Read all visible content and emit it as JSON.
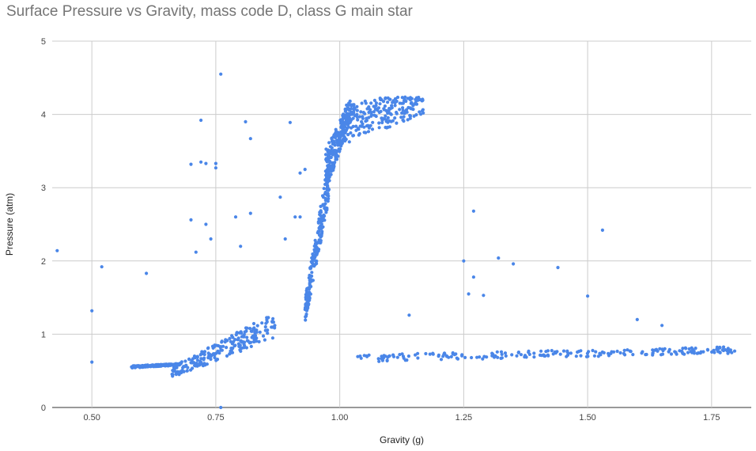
{
  "chart_data": {
    "type": "scatter",
    "title": "Surface Pressure vs Gravity, mass code D, class G main star",
    "xlabel": "Gravity (g)",
    "ylabel": "Pressure (atm)",
    "xlim": [
      0.42,
      1.83
    ],
    "ylim": [
      0,
      5
    ],
    "x_ticks": [
      "0.50",
      "0.75",
      "1.00",
      "1.25",
      "1.50",
      "1.75"
    ],
    "x_tick_values": [
      0.5,
      0.75,
      1.0,
      1.25,
      1.5,
      1.75
    ],
    "y_ticks": [
      "0",
      "1",
      "2",
      "3",
      "4",
      "5"
    ],
    "y_tick_values": [
      0,
      1,
      2,
      3,
      4,
      5
    ],
    "grid": true,
    "point_color": "#4a86e8",
    "clusters": [
      {
        "shape": "band",
        "from": [
          0.66,
          0.4,
          0.55
        ],
        "to": [
          0.87,
          0.95,
          1.3
        ]
      },
      {
        "shape": "band",
        "from": [
          0.58,
          0.54,
          0.57
        ],
        "to": [
          0.68,
          0.58,
          0.6
        ]
      },
      {
        "shape": "band",
        "from": [
          0.93,
          1.15,
          1.5
        ],
        "to": [
          0.98,
          2.9,
          3.5
        ]
      },
      {
        "shape": "band",
        "from": [
          0.97,
          2.9,
          3.5
        ],
        "to": [
          1.02,
          3.9,
          4.2
        ]
      },
      {
        "shape": "band",
        "from": [
          1.01,
          3.6,
          4.2
        ],
        "to": [
          1.17,
          4.0,
          4.25
        ]
      },
      {
        "shape": "band",
        "from": [
          1.03,
          0.62,
          0.72
        ],
        "to": [
          1.8,
          0.74,
          0.83
        ]
      }
    ],
    "points": [
      [
        0.43,
        2.14
      ],
      [
        0.5,
        1.32
      ],
      [
        0.52,
        1.92
      ],
      [
        0.5,
        0.62
      ],
      [
        0.61,
        1.83
      ],
      [
        0.72,
        3.92
      ],
      [
        0.72,
        3.35
      ],
      [
        0.73,
        3.33
      ],
      [
        0.7,
        3.32
      ],
      [
        0.75,
        3.33
      ],
      [
        0.75,
        3.27
      ],
      [
        0.73,
        2.5
      ],
      [
        0.76,
        4.55
      ],
      [
        0.81,
        3.9
      ],
      [
        0.82,
        3.67
      ],
      [
        0.82,
        2.65
      ],
      [
        0.79,
        2.6
      ],
      [
        0.8,
        2.2
      ],
      [
        0.74,
        2.3
      ],
      [
        0.7,
        2.56
      ],
      [
        0.71,
        2.12
      ],
      [
        0.9,
        3.89
      ],
      [
        0.92,
        3.2
      ],
      [
        0.93,
        3.25
      ],
      [
        0.88,
        2.87
      ],
      [
        0.91,
        2.6
      ],
      [
        0.92,
        2.6
      ],
      [
        0.89,
        2.3
      ],
      [
        1.27,
        2.68
      ],
      [
        1.32,
        2.04
      ],
      [
        1.35,
        1.96
      ],
      [
        1.44,
        1.91
      ],
      [
        1.25,
        2.0
      ],
      [
        1.27,
        1.78
      ],
      [
        1.53,
        2.42
      ],
      [
        1.5,
        1.52
      ],
      [
        1.29,
        1.53
      ],
      [
        1.26,
        1.55
      ],
      [
        1.6,
        1.2
      ],
      [
        1.65,
        1.12
      ],
      [
        1.14,
        1.26
      ],
      [
        0.76,
        0.0
      ]
    ]
  }
}
